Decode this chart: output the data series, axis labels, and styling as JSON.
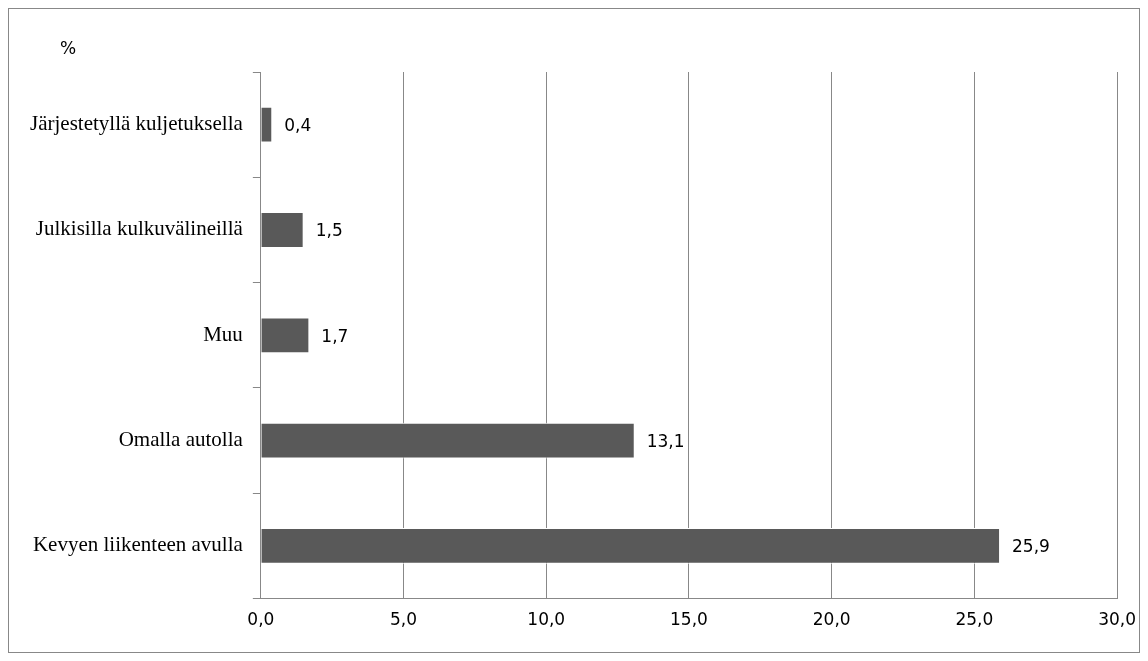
{
  "chart_data": {
    "type": "bar",
    "orientation": "horizontal",
    "ylabel": "%",
    "categories": [
      "Järjestetyllä kuljetuksella",
      "Julkisilla kulkuvälineillä",
      "Muu",
      "Omalla autolla",
      "Kevyen liikenteen avulla"
    ],
    "values": [
      0.4,
      1.5,
      1.7,
      13.1,
      25.9
    ],
    "value_labels": [
      "0,4",
      "1,5",
      "1,7",
      "13,1",
      "25,9"
    ],
    "color": "#595959",
    "xlim": [
      0,
      30
    ],
    "xticks": [
      {
        "value": 0,
        "label": "0,0"
      },
      {
        "value": 5,
        "label": "5,0"
      },
      {
        "value": 10,
        "label": "10,0"
      },
      {
        "value": 15,
        "label": "15,0"
      },
      {
        "value": 20,
        "label": "20,0"
      },
      {
        "value": 25,
        "label": "25,0"
      },
      {
        "value": 30,
        "label": "30,0"
      }
    ],
    "grid": "x",
    "legend": false
  }
}
